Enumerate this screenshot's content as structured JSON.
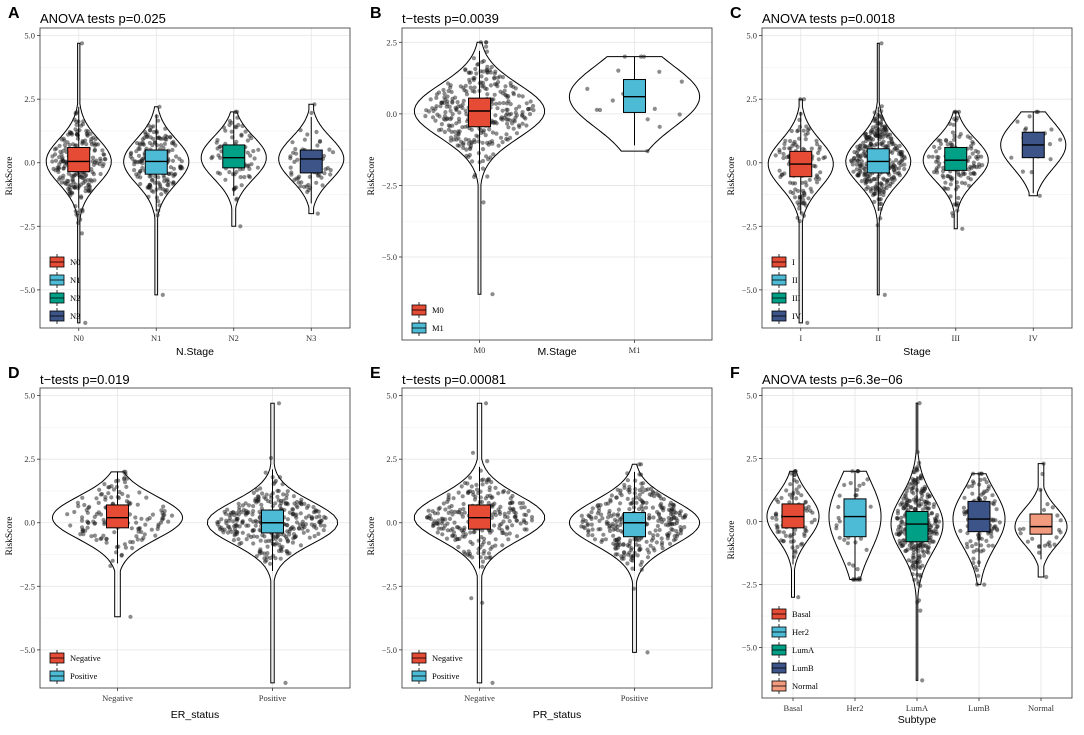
{
  "figure": {
    "colors": {
      "red": "#E64B35",
      "cyan": "#4DBBD5",
      "teal": "#00A087",
      "navy": "#3C5488",
      "salmon": "#F39B7F",
      "points": "#1a1a1a",
      "grid": "#e5e5e5"
    }
  },
  "chart_data": [
    {
      "panel": "A",
      "title": "ANOVA tests p=0.025",
      "type": "violin-box",
      "xlabel": "N.Stage",
      "ylabel": "RiskScore",
      "ylim": [
        -6.5,
        5.3
      ],
      "yticks": [
        5.0,
        2.5,
        0.0,
        -2.5,
        -5.0
      ],
      "ytick_labels": [
        "5.0",
        "2.5",
        "0.0",
        "−2.5",
        "−5.0"
      ],
      "categories": [
        "N0",
        "N1",
        "N2",
        "N3"
      ],
      "colors": [
        "red",
        "cyan",
        "teal",
        "navy"
      ],
      "legend": [
        "N0",
        "N1",
        "N2",
        "N3"
      ],
      "groups": [
        {
          "name": "N0",
          "n": 230,
          "min": -6.3,
          "max": 4.7,
          "q1": -0.35,
          "median": 0.05,
          "q3": 0.6,
          "wlo": -1.8,
          "whi": 2.2
        },
        {
          "name": "N1",
          "n": 180,
          "min": -5.2,
          "max": 2.2,
          "q1": -0.45,
          "median": 0.05,
          "q3": 0.5,
          "wlo": -1.9,
          "whi": 1.9
        },
        {
          "name": "N2",
          "n": 80,
          "min": -2.5,
          "max": 2.0,
          "q1": -0.2,
          "median": 0.2,
          "q3": 0.7,
          "wlo": -1.3,
          "whi": 2.0
        },
        {
          "name": "N3",
          "n": 55,
          "min": -2.0,
          "max": 2.3,
          "q1": -0.4,
          "median": 0.15,
          "q3": 0.5,
          "wlo": -1.6,
          "whi": 1.8
        }
      ]
    },
    {
      "panel": "B",
      "title": "t−tests p=0.0039",
      "type": "violin-box",
      "xlabel": "M.Stage",
      "ylabel": "RiskScore",
      "ylim": [
        -7.9,
        3.0
      ],
      "yticks": [
        2.5,
        0.0,
        -2.5,
        -5.0
      ],
      "ytick_labels": [
        "2.5",
        "0.0",
        "−2.5",
        "−5.0"
      ],
      "categories": [
        "M0",
        "M1"
      ],
      "colors": [
        "red",
        "cyan"
      ],
      "legend": [
        "M0",
        "M1"
      ],
      "groups": [
        {
          "name": "M0",
          "n": 600,
          "min": -6.3,
          "max": 2.5,
          "q1": -0.45,
          "median": 0.1,
          "q3": 0.55,
          "wlo": -2.0,
          "whi": 2.2
        },
        {
          "name": "M1",
          "n": 14,
          "min": -1.3,
          "max": 2.0,
          "q1": 0.05,
          "median": 0.6,
          "q3": 1.2,
          "wlo": -1.1,
          "whi": 2.0
        }
      ]
    },
    {
      "panel": "C",
      "title": "ANOVA tests p=0.0018",
      "type": "violin-box",
      "xlabel": "Stage",
      "ylabel": "RiskScore",
      "ylim": [
        -6.5,
        5.3
      ],
      "yticks": [
        5.0,
        2.5,
        0.0,
        -2.5,
        -5.0
      ],
      "ytick_labels": [
        "5.0",
        "2.5",
        "0.0",
        "−2.5",
        "−5.0"
      ],
      "categories": [
        "I",
        "II",
        "III",
        "IV"
      ],
      "colors": [
        "red",
        "cyan",
        "teal",
        "navy"
      ],
      "legend": [
        "I",
        "II",
        "III",
        "IV"
      ],
      "groups": [
        {
          "name": "I",
          "n": 120,
          "min": -6.3,
          "max": 2.5,
          "q1": -0.55,
          "median": -0.05,
          "q3": 0.45,
          "wlo": -2.0,
          "whi": 2.0
        },
        {
          "name": "II",
          "n": 320,
          "min": -5.2,
          "max": 4.7,
          "q1": -0.4,
          "median": 0.05,
          "q3": 0.55,
          "wlo": -1.9,
          "whi": 2.2
        },
        {
          "name": "III",
          "n": 130,
          "min": -2.6,
          "max": 2.0,
          "q1": -0.3,
          "median": 0.1,
          "q3": 0.6,
          "wlo": -1.7,
          "whi": 2.0
        },
        {
          "name": "IV",
          "n": 18,
          "min": -1.3,
          "max": 2.0,
          "q1": 0.2,
          "median": 0.7,
          "q3": 1.2,
          "wlo": -1.2,
          "whi": 2.0
        }
      ]
    },
    {
      "panel": "D",
      "title": "t−tests p=0.019",
      "type": "violin-box",
      "xlabel": "ER_status",
      "ylabel": "RiskScore",
      "ylim": [
        -6.5,
        5.3
      ],
      "yticks": [
        5.0,
        2.5,
        0.0,
        -2.5,
        -5.0
      ],
      "ytick_labels": [
        "5.0",
        "2.5",
        "0.0",
        "−2.5",
        "−5.0"
      ],
      "categories": [
        "Negative",
        "Positive"
      ],
      "colors": [
        "red",
        "cyan"
      ],
      "legend": [
        "Negative",
        "Positive"
      ],
      "groups": [
        {
          "name": "Negative",
          "n": 160,
          "min": -3.7,
          "max": 2.0,
          "q1": -0.2,
          "median": 0.2,
          "q3": 0.7,
          "wlo": -1.6,
          "whi": 2.0
        },
        {
          "name": "Positive",
          "n": 420,
          "min": -6.3,
          "max": 4.7,
          "q1": -0.4,
          "median": 0.0,
          "q3": 0.5,
          "wlo": -1.9,
          "whi": 2.1
        }
      ]
    },
    {
      "panel": "E",
      "title": "t−tests p=0.00081",
      "type": "violin-box",
      "xlabel": "PR_status",
      "ylabel": "RiskScore",
      "ylim": [
        -6.5,
        5.3
      ],
      "yticks": [
        5.0,
        2.5,
        0.0,
        -2.5,
        -5.0
      ],
      "ytick_labels": [
        "5.0",
        "2.5",
        "0.0",
        "−2.5",
        "−5.0"
      ],
      "categories": [
        "Negative",
        "Positive"
      ],
      "colors": [
        "red",
        "cyan"
      ],
      "legend": [
        "Negative",
        "Positive"
      ],
      "groups": [
        {
          "name": "Negative",
          "n": 260,
          "min": -6.3,
          "max": 4.7,
          "q1": -0.25,
          "median": 0.2,
          "q3": 0.7,
          "wlo": -1.8,
          "whi": 2.2
        },
        {
          "name": "Positive",
          "n": 330,
          "min": -5.1,
          "max": 2.3,
          "q1": -0.55,
          "median": 0.0,
          "q3": 0.4,
          "wlo": -1.9,
          "whi": 2.0
        }
      ]
    },
    {
      "panel": "F",
      "title": "ANOVA tests p=6.3e−06",
      "type": "violin-box",
      "xlabel": "Subtype",
      "ylabel": "RiskScore",
      "ylim": [
        -7.0,
        5.3
      ],
      "yticks": [
        5.0,
        2.5,
        0.0,
        -2.5,
        -5.0
      ],
      "ytick_labels": [
        "5.0",
        "2.5",
        "0.0",
        "−2.5",
        "−5.0"
      ],
      "categories": [
        "Basal",
        "Her2",
        "LumA",
        "LumB",
        "Normal"
      ],
      "colors": [
        "red",
        "cyan",
        "teal",
        "navy",
        "salmon"
      ],
      "legend": [
        "Basal",
        "Her2",
        "LumA",
        "LumB",
        "Normal"
      ],
      "groups": [
        {
          "name": "Basal",
          "n": 90,
          "min": -3.0,
          "max": 2.0,
          "q1": -0.25,
          "median": 0.2,
          "q3": 0.7,
          "wlo": -1.7,
          "whi": 2.0
        },
        {
          "name": "Her2",
          "n": 40,
          "min": -2.3,
          "max": 2.0,
          "q1": -0.6,
          "median": 0.2,
          "q3": 0.9,
          "wlo": -2.3,
          "whi": 2.0
        },
        {
          "name": "LumA",
          "n": 280,
          "min": -6.3,
          "max": 4.7,
          "q1": -0.8,
          "median": -0.1,
          "q3": 0.4,
          "wlo": -2.3,
          "whi": 1.8
        },
        {
          "name": "LumB",
          "n": 110,
          "min": -2.5,
          "max": 1.9,
          "q1": -0.4,
          "median": 0.1,
          "q3": 0.8,
          "wlo": -1.8,
          "whi": 1.9
        },
        {
          "name": "Normal",
          "n": 25,
          "min": -2.2,
          "max": 2.3,
          "q1": -0.5,
          "median": -0.2,
          "q3": 0.3,
          "wlo": -1.5,
          "whi": 1.3
        }
      ]
    }
  ]
}
